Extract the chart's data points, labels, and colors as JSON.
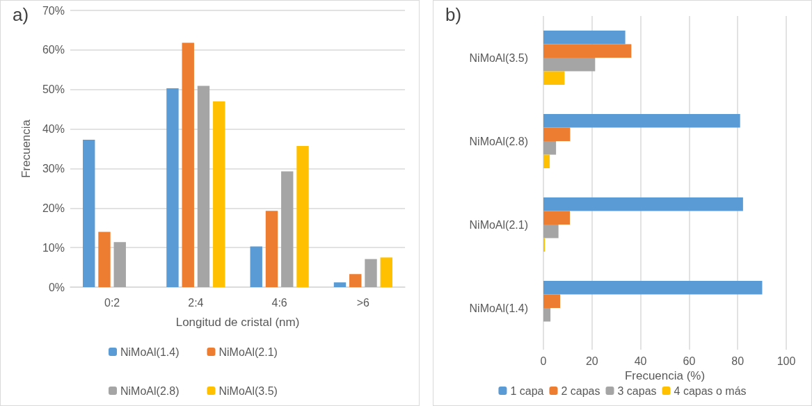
{
  "chart_data": [
    {
      "type": "bar",
      "title": "a)",
      "xlabel": "Longitud de cristal (nm)",
      "ylabel": "Frecuencia",
      "categories": [
        "0:2",
        "2:4",
        "4:6",
        ">6"
      ],
      "series": [
        {
          "name": "NiMoAl(1.4)",
          "color": "#5b9bd5",
          "values": [
            37.3,
            50.3,
            10.3,
            1.2
          ]
        },
        {
          "name": "NiMoAl(2.1)",
          "color": "#ed7d31",
          "values": [
            14.0,
            61.8,
            19.3,
            3.3
          ]
        },
        {
          "name": "NiMoAl(2.8)",
          "color": "#a5a5a5",
          "values": [
            11.4,
            50.9,
            29.3,
            7.1
          ]
        },
        {
          "name": "NiMoAl(3.5)",
          "color": "#ffc000",
          "values": [
            0,
            47.0,
            35.7,
            7.5
          ]
        }
      ],
      "ylim": [
        0,
        70
      ],
      "yticks": [
        {
          "value": 0,
          "label": "0%"
        },
        {
          "value": 10,
          "label": "10%"
        },
        {
          "value": 20,
          "label": "20%"
        },
        {
          "value": 30,
          "label": "30%"
        },
        {
          "value": 40,
          "label": "40%"
        },
        {
          "value": 50,
          "label": "50%"
        },
        {
          "value": 60,
          "label": "60%"
        },
        {
          "value": 70,
          "label": "70%"
        }
      ],
      "grid": "y",
      "legend": "bottom"
    },
    {
      "type": "bar",
      "orientation": "horizontal",
      "title": "b)",
      "xlabel": "Frecuencia (%)",
      "categories": [
        "NiMoAl(3.5)",
        "NiMoAl(2.8)",
        "NiMoAl(2.1)",
        "NiMoAl(1.4)"
      ],
      "series": [
        {
          "name": "1 capa",
          "color": "#5b9bd5",
          "values": [
            33.7,
            81.0,
            82.2,
            90.1
          ]
        },
        {
          "name": "2 capas",
          "color": "#ed7d31",
          "values": [
            36.2,
            11.0,
            10.9,
            6.9
          ]
        },
        {
          "name": "3 capas",
          "color": "#a5a5a5",
          "values": [
            21.3,
            5.2,
            6.2,
            2.9
          ]
        },
        {
          "name": "4 capas o más",
          "color": "#ffc000",
          "values": [
            8.7,
            2.6,
            0.6,
            0
          ]
        }
      ],
      "xlim": [
        0,
        100
      ],
      "xticks": [
        0,
        20,
        40,
        60,
        80,
        100
      ],
      "grid": "x",
      "legend": "bottom"
    }
  ]
}
